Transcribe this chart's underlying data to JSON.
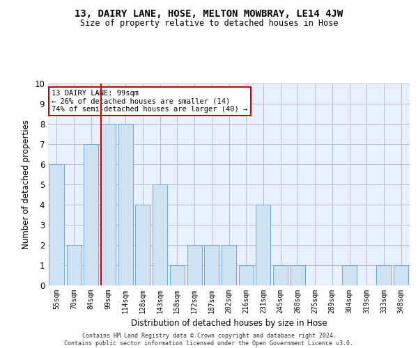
{
  "title": "13, DAIRY LANE, HOSE, MELTON MOWBRAY, LE14 4JW",
  "subtitle": "Size of property relative to detached houses in Hose",
  "xlabel": "Distribution of detached houses by size in Hose",
  "ylabel": "Number of detached properties",
  "footnote": "Contains HM Land Registry data © Crown copyright and database right 2024.\nContains public sector information licensed under the Open Government Licence v3.0.",
  "categories": [
    "55sqm",
    "70sqm",
    "84sqm",
    "99sqm",
    "114sqm",
    "128sqm",
    "143sqm",
    "158sqm",
    "172sqm",
    "187sqm",
    "202sqm",
    "216sqm",
    "231sqm",
    "245sqm",
    "260sqm",
    "275sqm",
    "289sqm",
    "304sqm",
    "319sqm",
    "333sqm",
    "348sqm"
  ],
  "values": [
    6,
    2,
    7,
    8,
    8,
    4,
    5,
    1,
    2,
    2,
    2,
    1,
    4,
    1,
    1,
    0,
    0,
    1,
    0,
    1,
    1
  ],
  "bar_color": "#cfe2f3",
  "bar_edge_color": "#6fa8dc",
  "vline_index": 3,
  "vline_color": "#cc0000",
  "annotation_line1": "13 DAIRY LANE: 99sqm",
  "annotation_line2": "← 26% of detached houses are smaller (14)",
  "annotation_line3": "74% of semi-detached houses are larger (40) →",
  "annotation_box_color": "#ffffff",
  "annotation_box_edge_color": "#cc0000",
  "ylim": [
    0,
    10
  ],
  "yticks": [
    0,
    1,
    2,
    3,
    4,
    5,
    6,
    7,
    8,
    9,
    10
  ],
  "ax_facecolor": "#e8f0fb",
  "background_color": "#ffffff",
  "grid_color": "#bbbbcc"
}
